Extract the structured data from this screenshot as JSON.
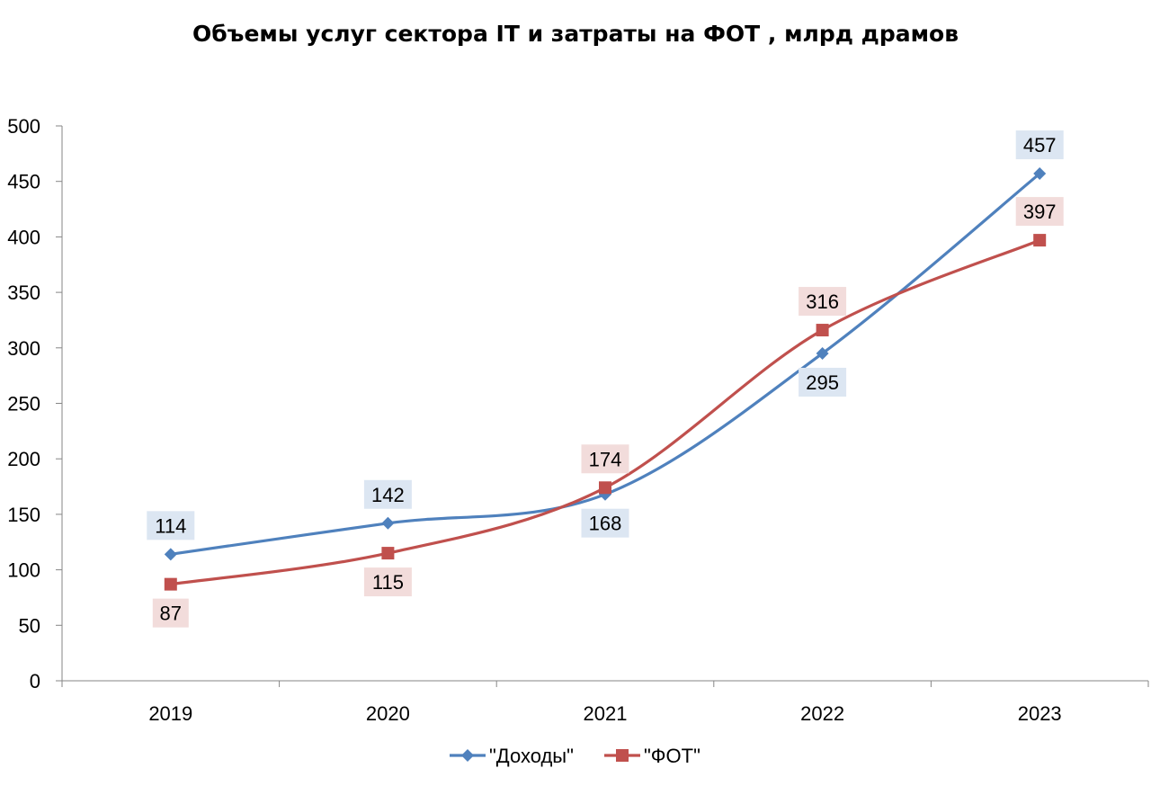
{
  "chart_data": {
    "type": "line",
    "title": "Объемы услуг сектора  IT и затраты на ФОТ  , млрд драмов",
    "categories": [
      "2019",
      "2020",
      "2021",
      "2022",
      "2023"
    ],
    "ylim": [
      0,
      500
    ],
    "yticks": [
      0,
      50,
      100,
      150,
      200,
      250,
      300,
      350,
      400,
      450,
      500
    ],
    "grid": false,
    "legend_position": "bottom",
    "series": [
      {
        "name": "\"Доходы\"",
        "values": [
          114,
          142,
          168,
          295,
          457
        ],
        "color": "#4F81BD",
        "label_bg": "#DCE6F2",
        "marker": "diamond",
        "label_positions": [
          "above",
          "above",
          "below",
          "below",
          "above"
        ]
      },
      {
        "name": "\"ФОТ\"",
        "values": [
          87,
          115,
          174,
          316,
          397
        ],
        "color": "#C0504D",
        "label_bg": "#F2DCDB",
        "marker": "square",
        "label_positions": [
          "below",
          "below",
          "above",
          "above",
          "above"
        ]
      }
    ]
  }
}
